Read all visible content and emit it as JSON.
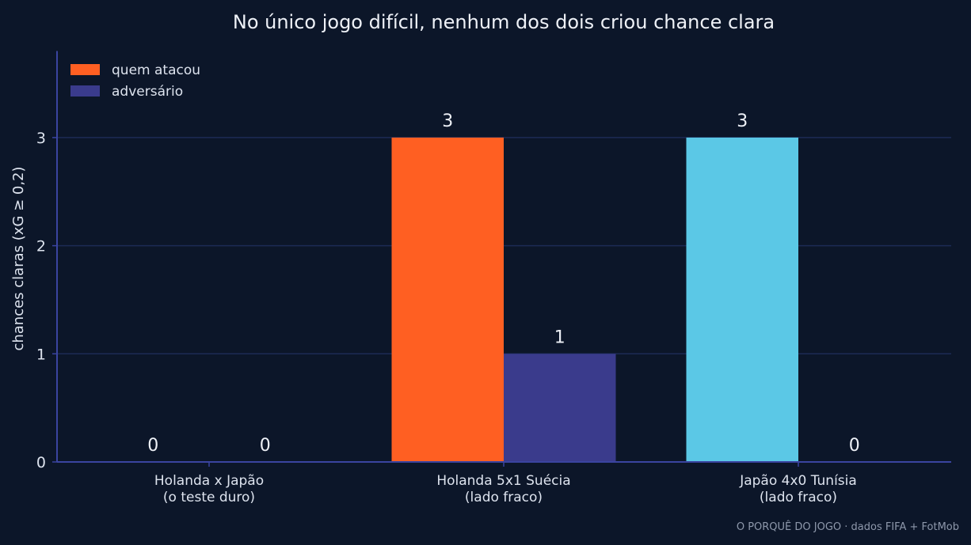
{
  "chart_data": {
    "type": "bar",
    "title": "No único jogo difícil, nenhum dos dois criou chance clara",
    "ylabel": "chances claras (xG ≥ 0,2)",
    "xlabel": "",
    "categories": [
      [
        "Holanda x Japão",
        "(o teste duro)"
      ],
      [
        "Holanda 5x1 Suécia",
        "(lado fraco)"
      ],
      [
        "Japão 4x0 Tunísia",
        "(lado fraco)"
      ]
    ],
    "series": [
      {
        "name": "quem atacou",
        "values": [
          0,
          3,
          3
        ],
        "point_colors": [
          "#ff5f22",
          "#ff5f22",
          "#5bc8e6"
        ]
      },
      {
        "name": "adversário",
        "values": [
          0,
          1,
          0
        ],
        "point_colors": [
          "#3a3b8c",
          "#3a3b8c",
          "#3a3b8c"
        ]
      }
    ],
    "legend_colors": [
      "#ff5f22",
      "#3a3b8c"
    ],
    "yticks": [
      0,
      1,
      2,
      3
    ],
    "ylim": [
      0,
      3.8
    ],
    "grid": "y",
    "legend_position": "top-left"
  },
  "source": "O PORQUÊ DO JOGO · dados FIFA + FotMob",
  "colors": {
    "background": "#0c1629",
    "grid": "#1c2b55",
    "axis": "#3a44a0"
  }
}
